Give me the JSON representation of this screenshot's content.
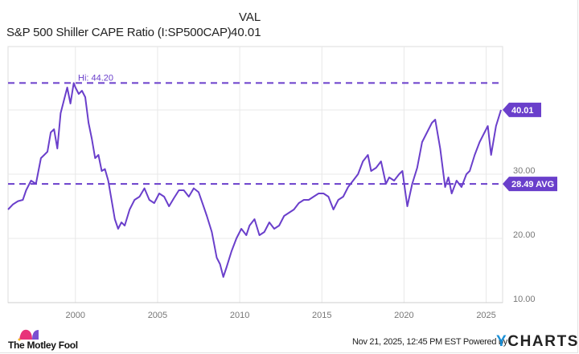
{
  "header": {
    "column_label": "VAL",
    "series_name": "S&P 500 Shiller CAPE Ratio (I:SP500CAP)",
    "current_value": "40.01"
  },
  "annotations": {
    "high_label": "Hi: 44.20",
    "avg_label": "28.49 AVG",
    "last_label": "40.01"
  },
  "y_axis": {
    "ticks": [
      "30.00",
      "20.00",
      "10.00"
    ]
  },
  "x_axis": {
    "ticks": [
      "2000",
      "2005",
      "2010",
      "2015",
      "2020",
      "2025"
    ]
  },
  "footer": {
    "logo_text": "The Motley Fool",
    "timestamp": "Nov 21, 2025, 12:45 PM EST Powered by",
    "brand_y": "Y",
    "brand_rest": "CHARTS"
  },
  "colors": {
    "line": "#6a3fcb",
    "label_bg": "#6a3fcb",
    "grid": "#e8e8e8",
    "axis_text": "#777777",
    "ycharts_blue": "#1a8fd6"
  },
  "chart_data": {
    "type": "line",
    "title": "S&P 500 Shiller CAPE Ratio (I:SP500CAP)",
    "xlabel": "",
    "ylabel": "",
    "ylim": [
      10,
      48
    ],
    "xlim": [
      1995.9,
      2026.0
    ],
    "grid": true,
    "legend_position": "top-left",
    "x_ticks": [
      2000,
      2005,
      2010,
      2015,
      2020,
      2025
    ],
    "y_ticks": [
      10,
      20,
      30,
      40
    ],
    "reference_lines": [
      {
        "label": "Hi: 44.20",
        "value": 44.2,
        "style": "dashed"
      },
      {
        "label": "28.49 AVG",
        "value": 28.49,
        "style": "dashed"
      }
    ],
    "series": [
      {
        "name": "S&P 500 Shiller CAPE Ratio",
        "last_value": 40.01,
        "x": [
          1995.9,
          1996.2,
          1996.5,
          1996.8,
          1997.0,
          1997.3,
          1997.6,
          1997.9,
          1998.1,
          1998.3,
          1998.5,
          1998.7,
          1998.9,
          1999.1,
          1999.3,
          1999.5,
          1999.7,
          1999.9,
          2000.0,
          2000.2,
          2000.4,
          2000.6,
          2000.8,
          2001.0,
          2001.2,
          2001.4,
          2001.6,
          2001.8,
          2002.0,
          2002.2,
          2002.4,
          2002.6,
          2002.8,
          2003.0,
          2003.3,
          2003.6,
          2003.9,
          2004.2,
          2004.5,
          2004.8,
          2005.1,
          2005.4,
          2005.7,
          2006.0,
          2006.3,
          2006.6,
          2006.9,
          2007.2,
          2007.5,
          2007.8,
          2008.0,
          2008.3,
          2008.6,
          2008.8,
          2009.0,
          2009.2,
          2009.5,
          2009.8,
          2010.1,
          2010.4,
          2010.6,
          2010.9,
          2011.2,
          2011.5,
          2011.8,
          2012.1,
          2012.4,
          2012.7,
          2013.0,
          2013.3,
          2013.6,
          2013.9,
          2014.2,
          2014.5,
          2014.8,
          2015.1,
          2015.4,
          2015.7,
          2016.0,
          2016.3,
          2016.6,
          2016.9,
          2017.2,
          2017.5,
          2017.8,
          2018.0,
          2018.3,
          2018.6,
          2018.9,
          2019.1,
          2019.4,
          2019.7,
          2019.9,
          2020.2,
          2020.5,
          2020.8,
          2021.1,
          2021.4,
          2021.7,
          2021.9,
          2022.2,
          2022.5,
          2022.7,
          2022.9,
          2023.2,
          2023.5,
          2023.8,
          2024.0,
          2024.3,
          2024.6,
          2024.9,
          2025.1,
          2025.3,
          2025.6,
          2025.9
        ],
        "values": [
          24.5,
          25.3,
          25.8,
          26.0,
          27.5,
          29.0,
          28.5,
          32.5,
          33.0,
          33.5,
          36.5,
          37.0,
          34.0,
          39.5,
          41.5,
          43.5,
          41.0,
          44.2,
          43.5,
          42.5,
          43.0,
          42.0,
          38.0,
          35.5,
          32.5,
          33.0,
          30.5,
          30.8,
          29.0,
          26.0,
          23.0,
          21.5,
          22.5,
          22.0,
          24.5,
          26.0,
          26.5,
          27.8,
          26.0,
          25.5,
          27.0,
          26.5,
          25.0,
          26.3,
          27.5,
          27.5,
          26.5,
          27.8,
          27.2,
          25.0,
          23.5,
          21.0,
          17.0,
          16.0,
          14.0,
          15.5,
          18.0,
          20.0,
          21.5,
          20.5,
          22.0,
          23.0,
          20.5,
          21.0,
          22.5,
          21.5,
          22.0,
          23.5,
          24.0,
          24.5,
          25.5,
          26.0,
          26.0,
          26.5,
          27.0,
          27.0,
          26.5,
          24.5,
          26.0,
          26.5,
          28.0,
          29.0,
          30.0,
          32.0,
          33.0,
          30.5,
          31.0,
          32.0,
          28.5,
          29.5,
          29.0,
          30.0,
          30.5,
          25.0,
          28.5,
          31.0,
          35.0,
          36.5,
          38.0,
          38.5,
          34.0,
          28.0,
          29.5,
          27.0,
          29.0,
          28.0,
          30.0,
          30.5,
          33.0,
          35.0,
          36.5,
          37.5,
          33.0,
          37.5,
          40.01
        ]
      }
    ]
  }
}
